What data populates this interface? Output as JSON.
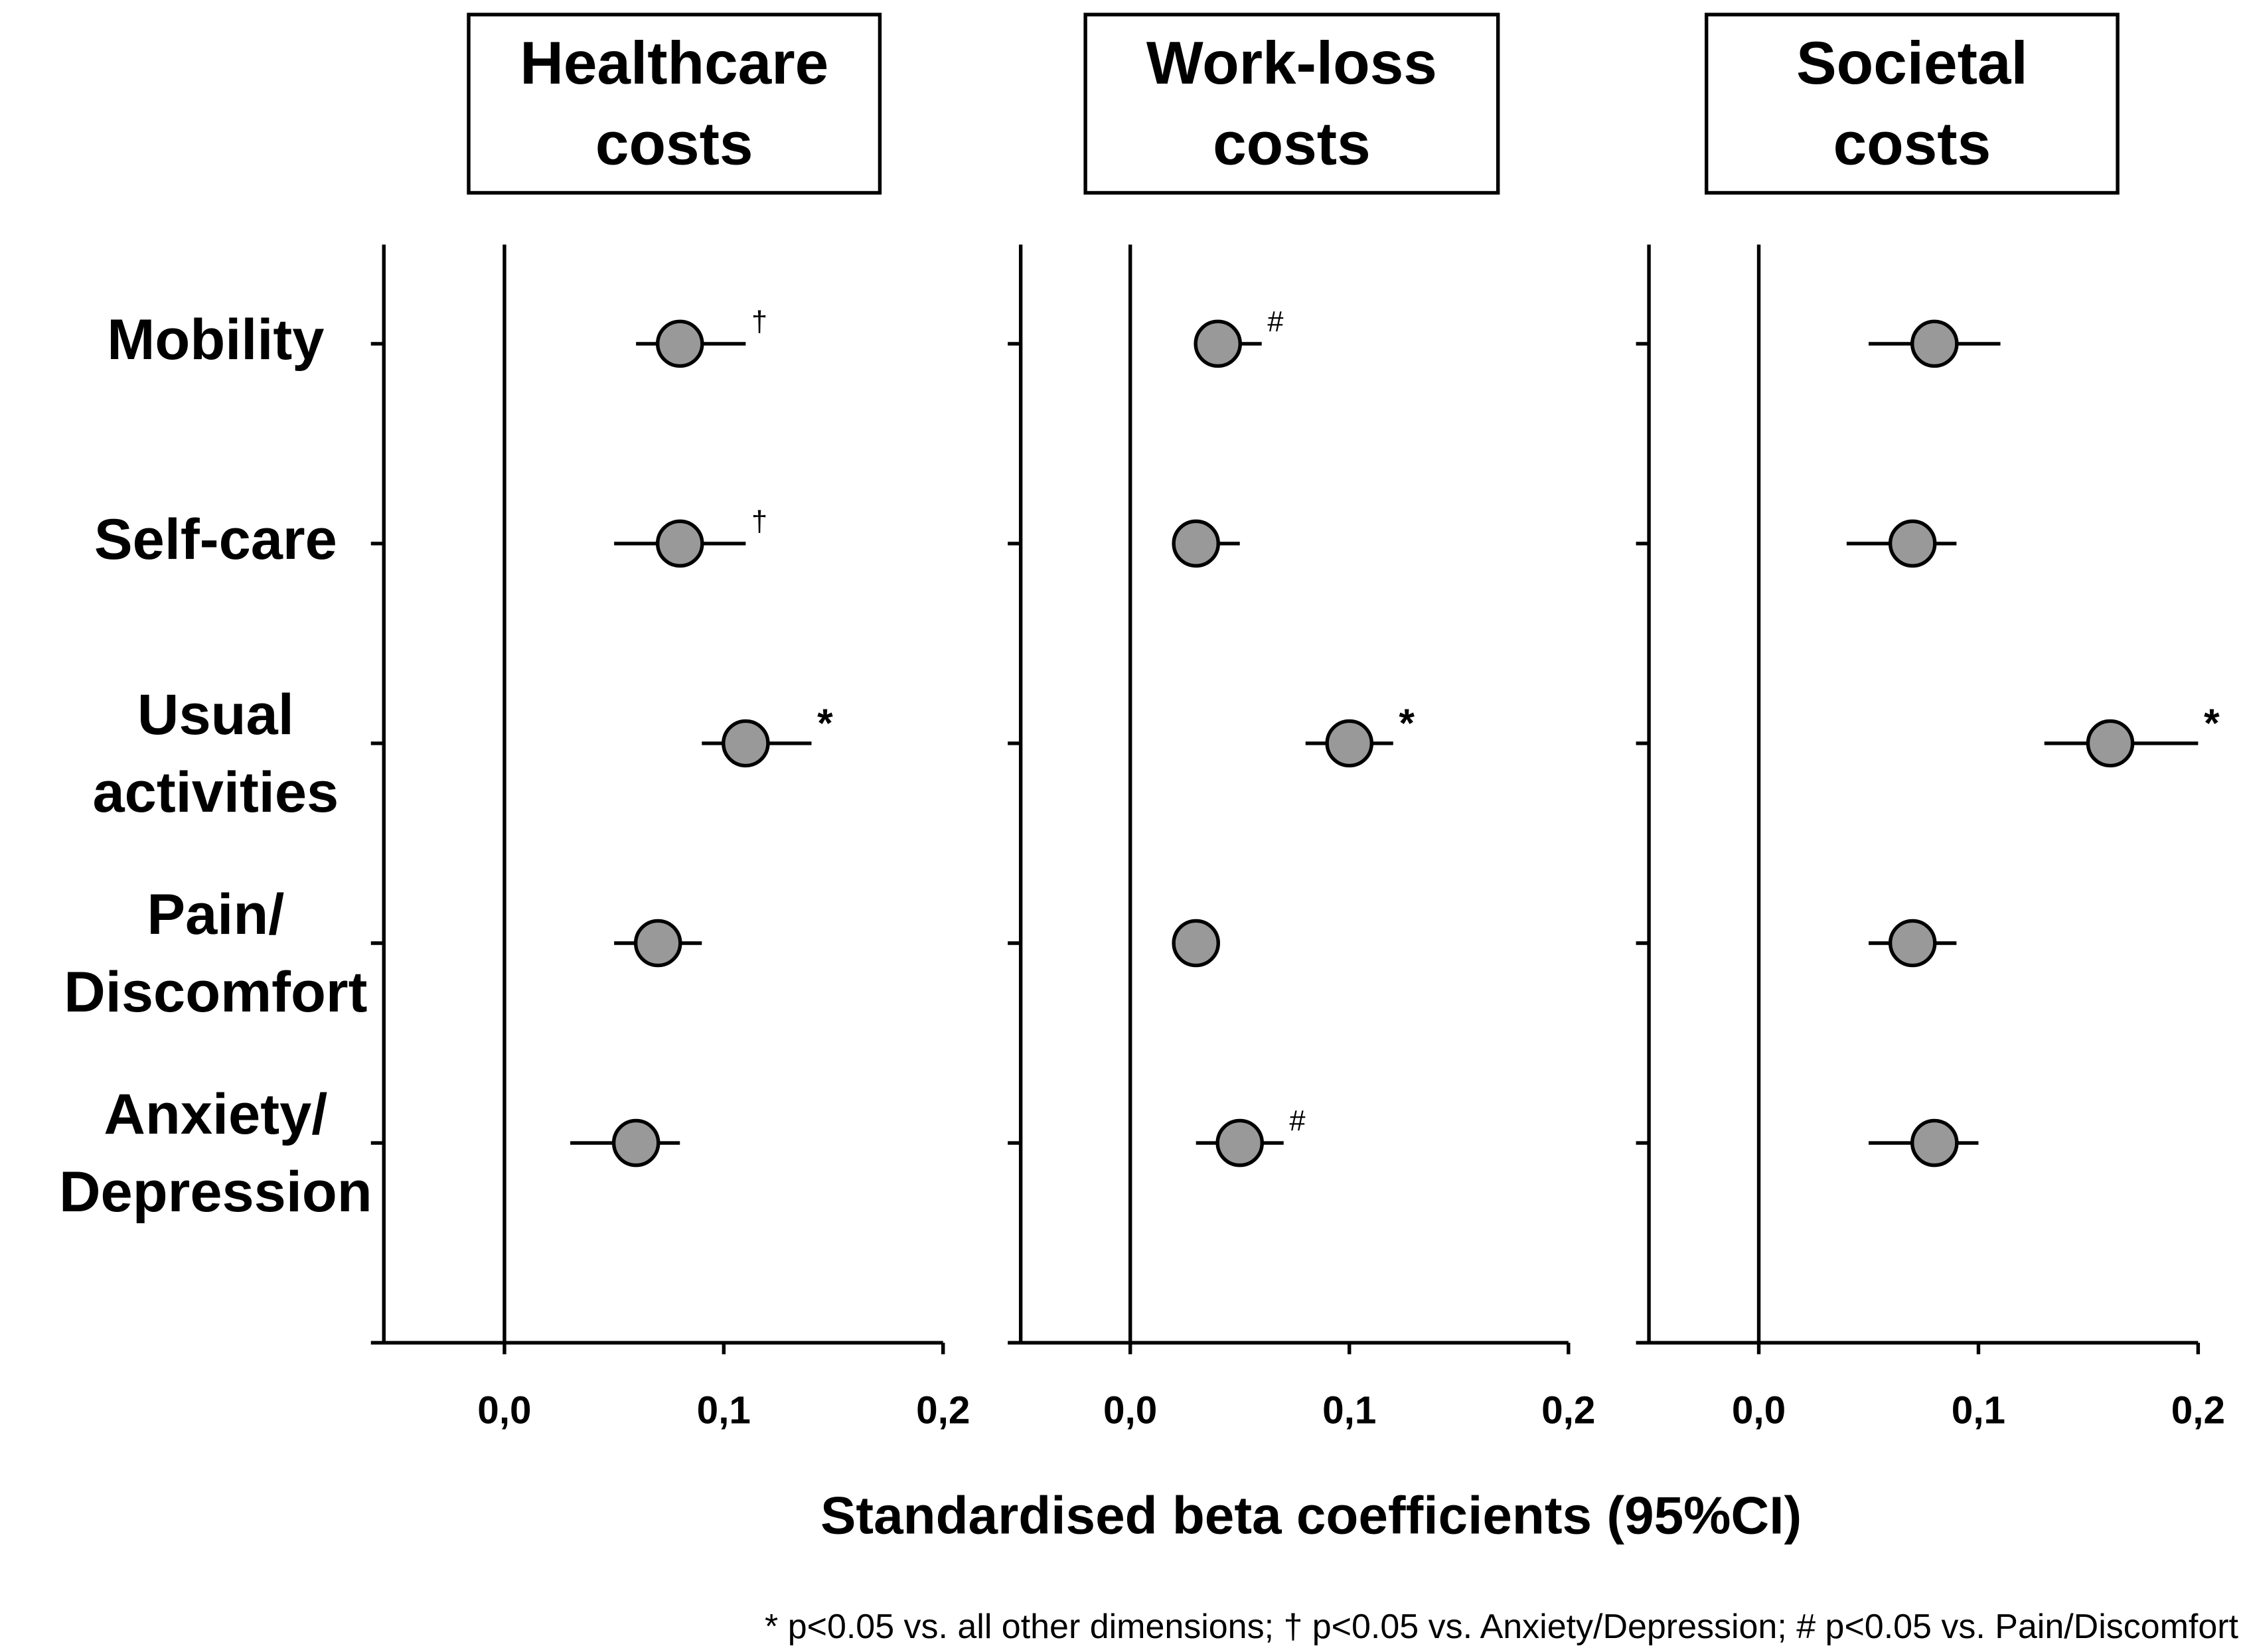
{
  "xlabel": "Standardised beta coefficients (95%CI)",
  "footnote": "* p<0.05 vs. all other dimensions; † p<0.05 vs. Anxiety/Depression; # p<0.05 vs. Pain/Discomfort",
  "chart_data": [
    {
      "type": "forest",
      "title": "Healthcare\ncosts",
      "categories": [
        "Mobility",
        "Self-care",
        "Usual\nactivities",
        "Pain/\nDiscomfort",
        "Anxiety/\nDepression"
      ],
      "values": [
        0.08,
        0.08,
        0.11,
        0.07,
        0.06
      ],
      "ci_low": [
        0.06,
        0.05,
        0.09,
        0.05,
        0.03
      ],
      "ci_high": [
        0.11,
        0.11,
        0.14,
        0.09,
        0.08
      ],
      "annotations": [
        "†",
        "†",
        "*",
        null,
        null
      ],
      "color": "#999999",
      "xlim": [
        -0.055,
        0.2
      ],
      "xticks": [
        {
          "value": 0,
          "label": "0,0"
        },
        {
          "value": 0.1,
          "label": "0,1"
        },
        {
          "value": 0.2,
          "label": "0,2"
        }
      ]
    },
    {
      "type": "forest",
      "title": "Work-loss\ncosts",
      "values": [
        0.04,
        0.03,
        0.1,
        0.03,
        0.05
      ],
      "ci_low": [
        0.03,
        0.02,
        0.08,
        0.02,
        0.03
      ],
      "ci_high": [
        0.06,
        0.05,
        0.12,
        0.04,
        0.07
      ],
      "annotations": [
        "#",
        null,
        "*",
        null,
        "#"
      ],
      "color": "#999999",
      "xlim": [
        -0.05,
        0.2
      ],
      "xticks": [
        {
          "value": 0,
          "label": "0,0"
        },
        {
          "value": 0.1,
          "label": "0,1"
        },
        {
          "value": 0.2,
          "label": "0,2"
        }
      ]
    },
    {
      "type": "forest",
      "title": "Societal\ncosts",
      "values": [
        0.08,
        0.07,
        0.16,
        0.07,
        0.08
      ],
      "ci_low": [
        0.05,
        0.04,
        0.13,
        0.05,
        0.05
      ],
      "ci_high": [
        0.11,
        0.09,
        0.2,
        0.09,
        0.1
      ],
      "annotations": [
        null,
        null,
        "*",
        null,
        null
      ],
      "color": "#999999",
      "xlim": [
        -0.05,
        0.2
      ],
      "xticks": [
        {
          "value": 0,
          "label": "0,0"
        },
        {
          "value": 0.1,
          "label": "0,1"
        },
        {
          "value": 0.2,
          "label": "0,2"
        }
      ]
    }
  ]
}
